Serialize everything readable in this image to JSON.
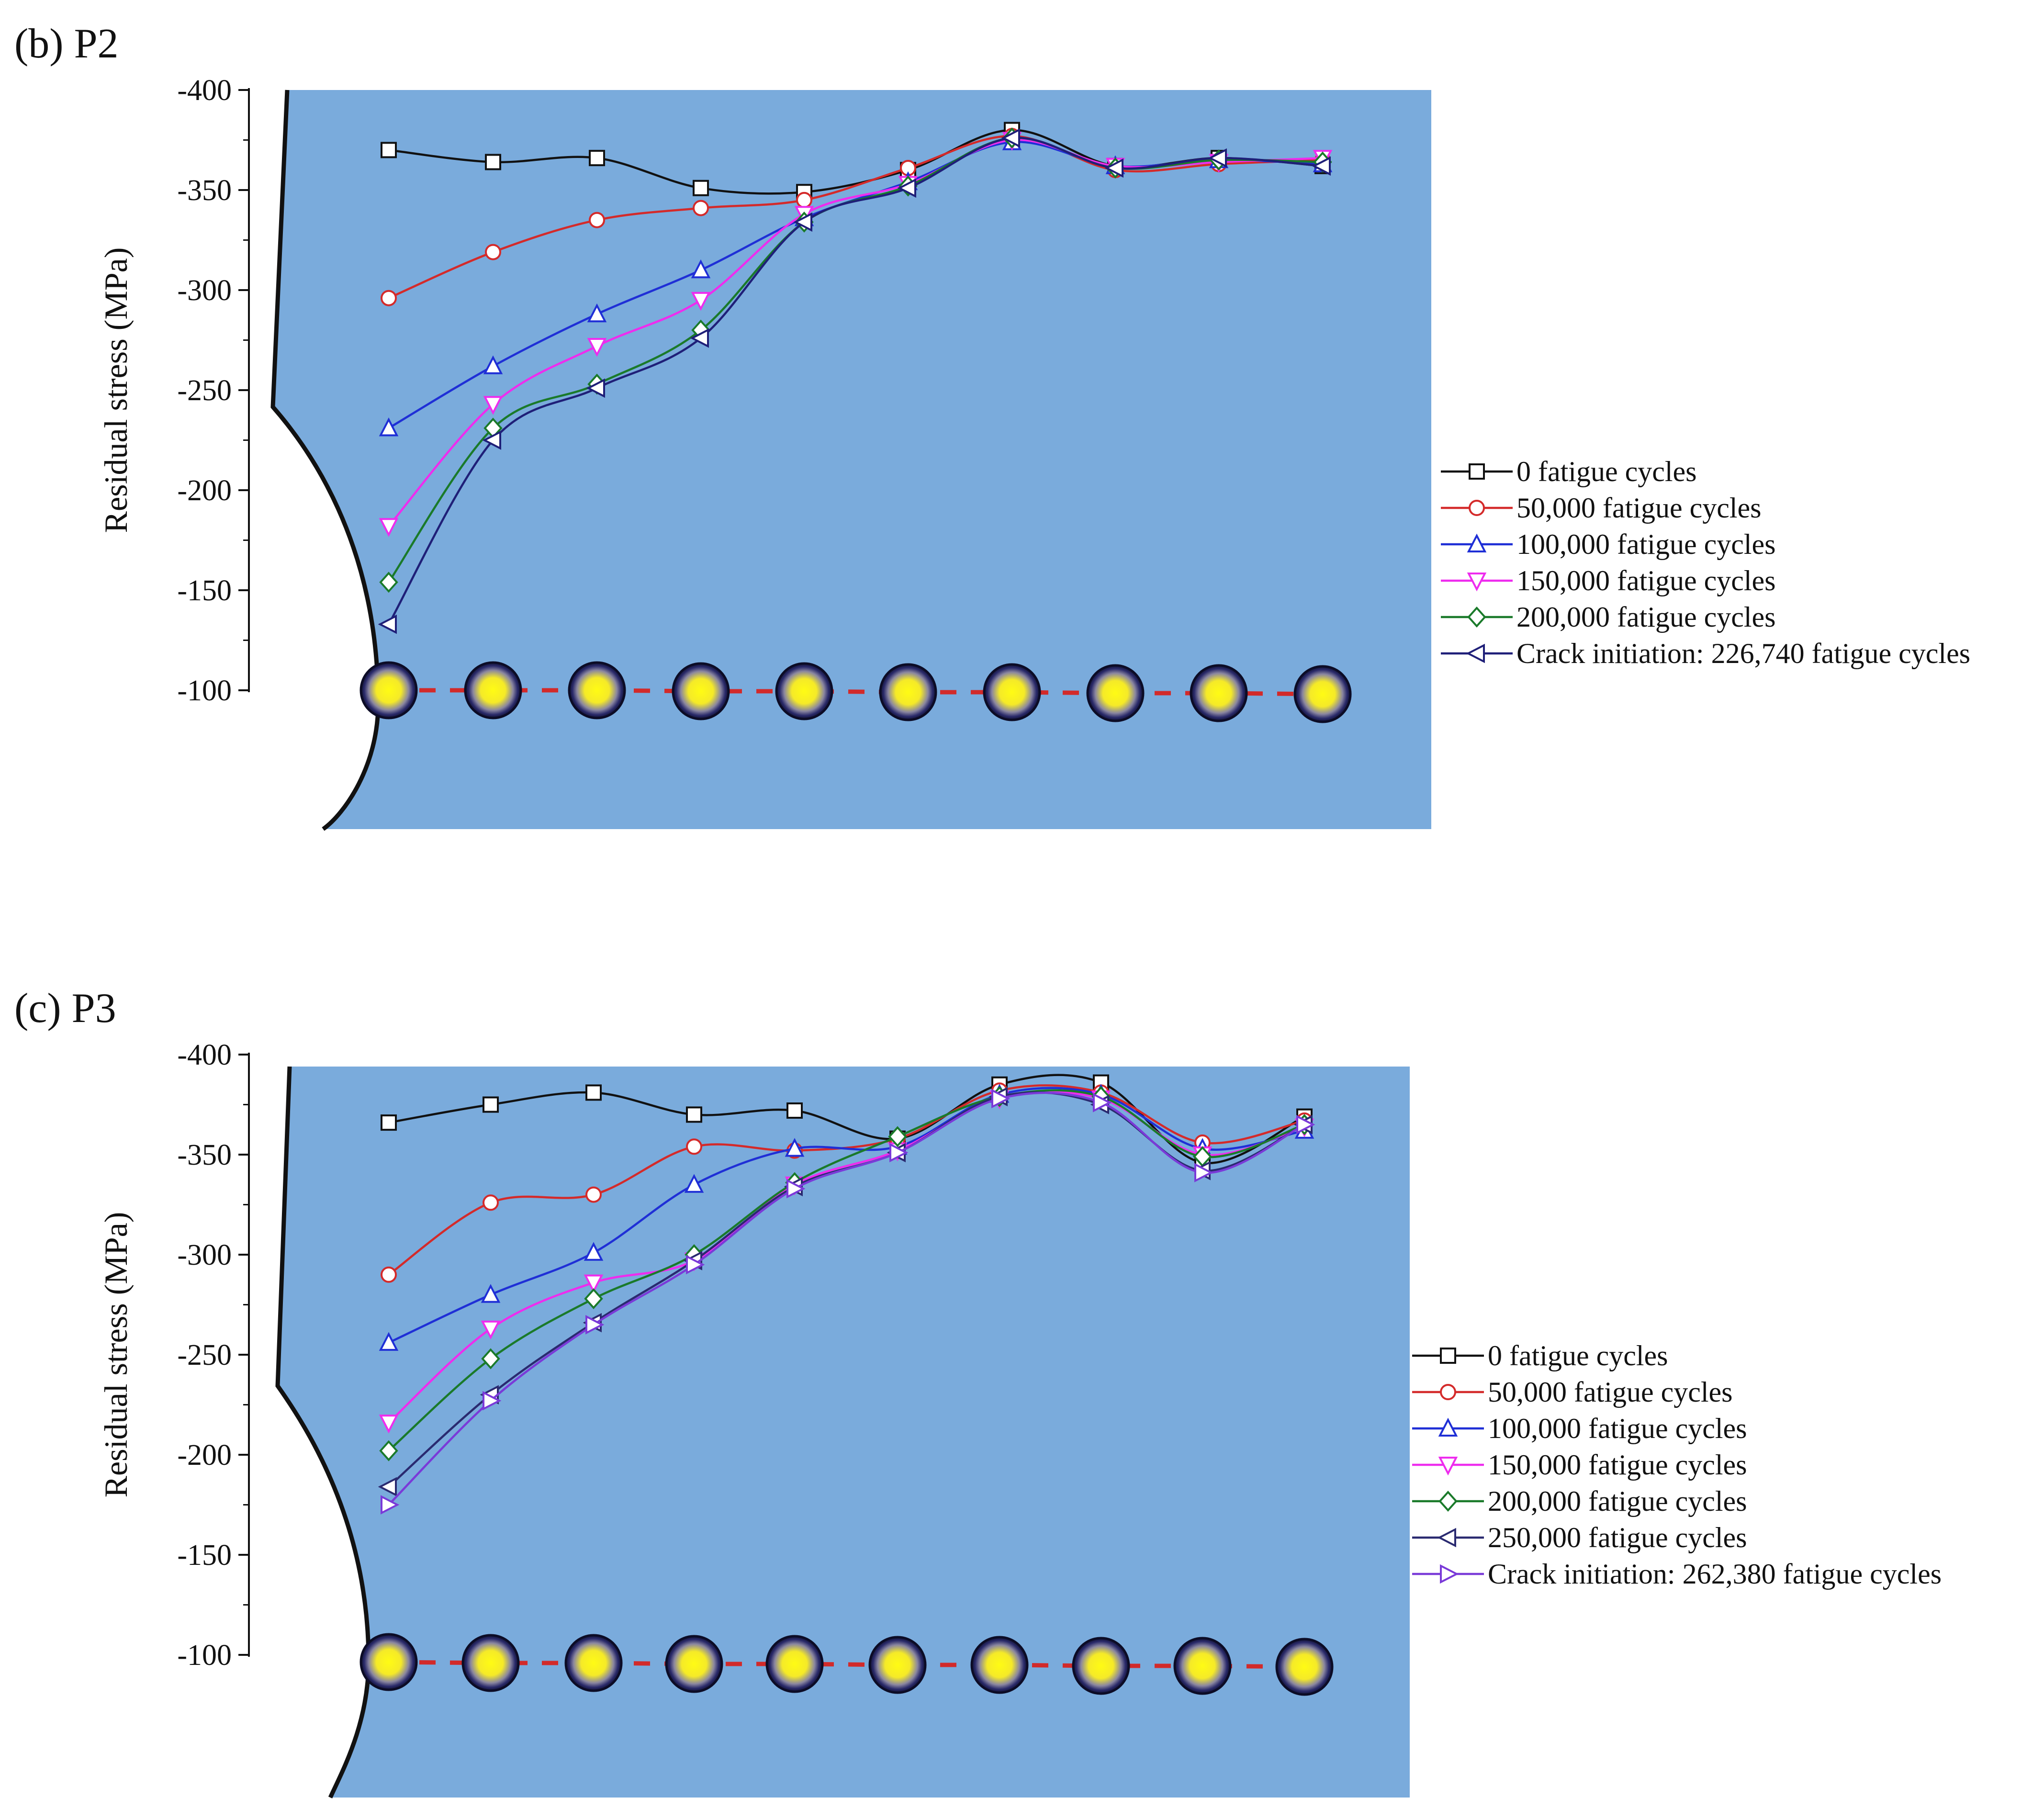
{
  "chart_data": [
    {
      "type": "line",
      "panel_label": "(b) P2",
      "ylabel": "Residual stress (MPa)",
      "xlabel": "",
      "ylim": [
        -400,
        -100
      ],
      "y_reversed": true,
      "yticks": [
        -400,
        -350,
        -300,
        -250,
        -200,
        -150,
        -100
      ],
      "x": [
        1,
        2,
        3,
        4,
        5,
        6,
        7,
        8,
        9,
        10
      ],
      "series": [
        {
          "name": "0 fatigue cycles",
          "color": "#111111",
          "marker": "square",
          "values": [
            -370,
            -364,
            -366,
            -351,
            -349,
            -360,
            -380,
            -362,
            -366,
            -362
          ]
        },
        {
          "name": "50,000 fatigue cycles",
          "color": "#d42a2a",
          "marker": "circle",
          "values": [
            -296,
            -319,
            -335,
            -341,
            -345,
            -361,
            -377,
            -360,
            -363,
            -365
          ]
        },
        {
          "name": "100,000 fatigue cycles",
          "color": "#1f2fd6",
          "marker": "triangle-up",
          "values": [
            -231,
            -262,
            -288,
            -310,
            -336,
            -354,
            -374,
            -362,
            -365,
            -363
          ]
        },
        {
          "name": "150,000 fatigue cycles",
          "color": "#ee2cee",
          "marker": "triangle-down",
          "values": [
            -182,
            -243,
            -272,
            -295,
            -338,
            -353,
            -375,
            -362,
            -364,
            -366
          ]
        },
        {
          "name": "200,000 fatigue cycles",
          "color": "#1a7a2a",
          "marker": "diamond",
          "values": [
            -154,
            -231,
            -253,
            -280,
            -334,
            -352,
            -376,
            -361,
            -365,
            -364
          ]
        },
        {
          "name": "Crack initiation: 226,740 fatigue cycles",
          "color": "#1f1f78",
          "marker": "triangle-left",
          "values": [
            -133,
            -225,
            -251,
            -276,
            -334,
            -351,
            -376,
            -361,
            -366,
            -362
          ]
        }
      ]
    },
    {
      "type": "line",
      "panel_label": "(c) P3",
      "ylabel": "Residual stress (MPa)",
      "xlabel": "",
      "ylim": [
        -400,
        -100
      ],
      "y_reversed": true,
      "yticks": [
        -400,
        -350,
        -300,
        -250,
        -200,
        -150,
        -100
      ],
      "x": [
        1,
        2,
        3,
        4,
        5,
        6,
        7,
        8,
        9,
        10
      ],
      "series": [
        {
          "name": "0 fatigue cycles",
          "color": "#111111",
          "marker": "square",
          "values": [
            -366,
            -375,
            -381,
            -370,
            -372,
            -358,
            -385,
            -386,
            -346,
            -369
          ]
        },
        {
          "name": "50,000 fatigue cycles",
          "color": "#d42a2a",
          "marker": "circle",
          "values": [
            -290,
            -326,
            -330,
            -354,
            -352,
            -358,
            -382,
            -381,
            -356,
            -367
          ]
        },
        {
          "name": "100,000 fatigue cycles",
          "color": "#1f2fd6",
          "marker": "triangle-up",
          "values": [
            -256,
            -280,
            -301,
            -335,
            -353,
            -354,
            -380,
            -380,
            -353,
            -362
          ]
        },
        {
          "name": "150,000 fatigue cycles",
          "color": "#ee2cee",
          "marker": "triangle-down",
          "values": [
            -216,
            -263,
            -286,
            -297,
            -335,
            -352,
            -378,
            -378,
            -350,
            -364
          ]
        },
        {
          "name": "200,000 fatigue cycles",
          "color": "#1a7a2a",
          "marker": "diamond",
          "values": [
            -202,
            -248,
            -278,
            -300,
            -336,
            -359,
            -379,
            -379,
            -349,
            -365
          ]
        },
        {
          "name": "250,000 fatigue cycles",
          "color": "#2a2a70",
          "marker": "triangle-left",
          "values": [
            -184,
            -230,
            -266,
            -297,
            -334,
            -351,
            -379,
            -375,
            -342,
            -365
          ]
        },
        {
          "name": "Crack initiation: 262,380 fatigue cycles",
          "color": "#7a3ad8",
          "marker": "triangle-right",
          "values": [
            -175,
            -227,
            -265,
            -295,
            -333,
            -351,
            -378,
            -376,
            -341,
            -365
          ]
        }
      ]
    }
  ],
  "colors": {
    "plate": "#7aabdc",
    "ball_core": "#fffb14",
    "ball_rim": "#1a1a55",
    "ball_line": "#d22a2a"
  }
}
